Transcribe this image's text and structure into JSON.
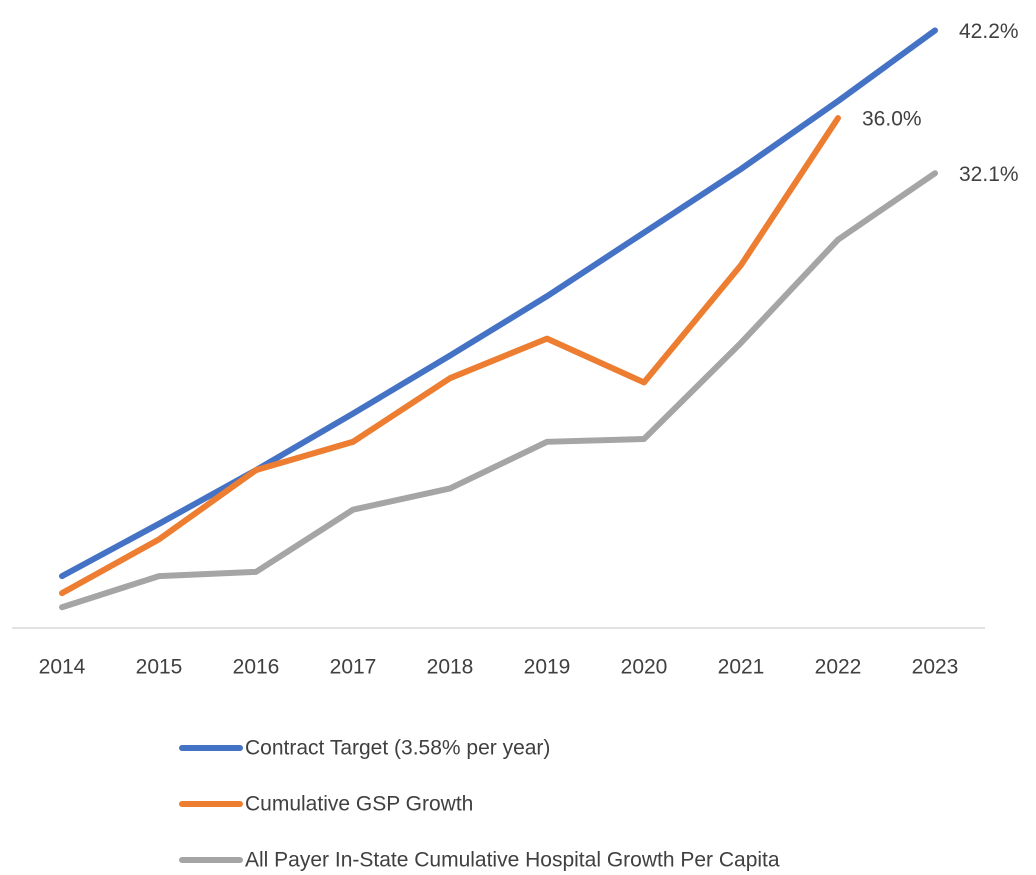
{
  "chart_data": {
    "type": "line",
    "categories": [
      "2014",
      "2015",
      "2016",
      "2017",
      "2018",
      "2019",
      "2020",
      "2021",
      "2022",
      "2023"
    ],
    "series": [
      {
        "name": "Contract Target (3.58% per year)",
        "color": "#4472c4",
        "values": [
          3.6,
          7.3,
          11.1,
          15.1,
          19.2,
          23.4,
          27.9,
          32.4,
          37.2,
          42.2
        ],
        "value_labels": [
          null,
          null,
          null,
          null,
          null,
          null,
          null,
          null,
          null,
          "42.2%"
        ]
      },
      {
        "name": "Cumulative GSP Growth",
        "color": "#ed7d31",
        "values": [
          2.4,
          6.2,
          11.1,
          13.1,
          17.6,
          20.4,
          17.3,
          25.6,
          36.0,
          null
        ],
        "value_labels": [
          null,
          null,
          null,
          null,
          null,
          null,
          null,
          null,
          "36.0%",
          null
        ]
      },
      {
        "name": "All Payer In-State Cumulative Hospital Growth Per Capita",
        "color": "#a5a5a5",
        "values": [
          1.4,
          3.6,
          3.9,
          8.3,
          9.8,
          13.1,
          13.3,
          20.1,
          27.4,
          32.1
        ],
        "value_labels": [
          null,
          null,
          null,
          null,
          null,
          null,
          null,
          null,
          null,
          "32.1%"
        ]
      }
    ],
    "ylim": [
      0,
      44
    ],
    "legend": "bottom"
  }
}
